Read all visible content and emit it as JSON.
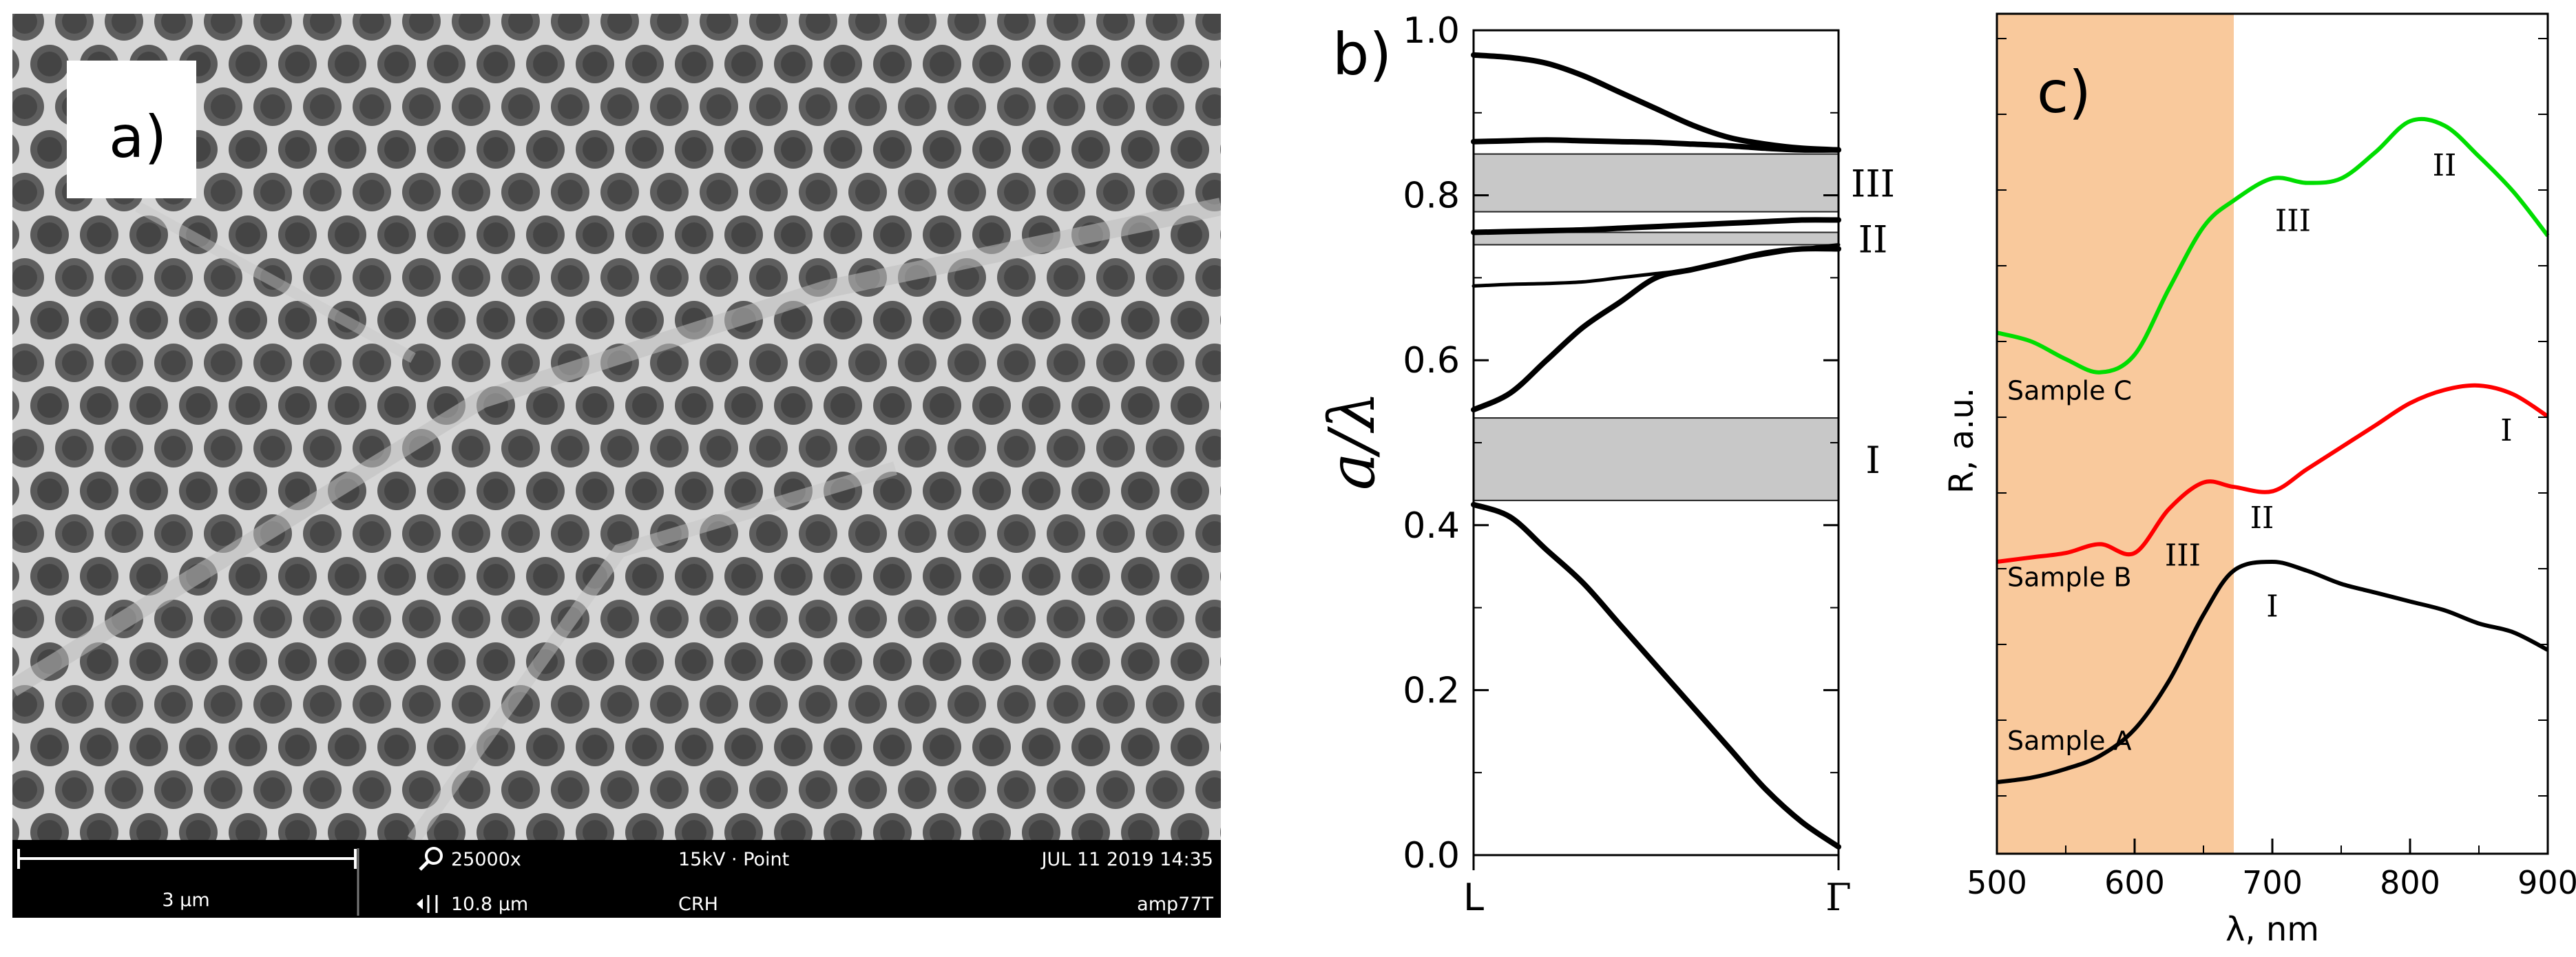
{
  "panels": {
    "a": {
      "label": "a)",
      "microscope_info": {
        "scale_bar": "3 µm",
        "magnification": "25000x",
        "field_of_view": "10.8 µm",
        "voltage_mode": "15kV · Point",
        "detector": "CRH",
        "date": "JUL 11 2019 14:35",
        "sample_id": "amp77T"
      }
    },
    "b": {
      "label": "b)"
    },
    "c": {
      "label": "c)"
    }
  },
  "chart_data": [
    {
      "panel": "b",
      "type": "line",
      "title": "",
      "xlabel": "",
      "ylabel": "a/λ",
      "x_ticks": [
        "L",
        "Γ"
      ],
      "ylim": [
        0,
        1.0
      ],
      "y_ticks": [
        "0.0",
        "0.2",
        "0.4",
        "0.6",
        "0.8",
        "1.0"
      ],
      "x": [
        0,
        0.1,
        0.2,
        0.3,
        0.4,
        0.5,
        0.6,
        0.7,
        0.8,
        0.9,
        1.0
      ],
      "series": [
        {
          "name": "band 1",
          "values": [
            0.425,
            0.41,
            0.37,
            0.33,
            0.28,
            0.23,
            0.18,
            0.13,
            0.08,
            0.04,
            0.01
          ]
        },
        {
          "name": "band 2",
          "values": [
            0.54,
            0.56,
            0.6,
            0.64,
            0.67,
            0.7,
            0.71,
            0.72,
            0.73,
            0.735,
            0.735
          ]
        },
        {
          "name": "band 3",
          "values": [
            0.69,
            0.692,
            0.693,
            0.695,
            0.7,
            0.705,
            0.71,
            0.72,
            0.728,
            0.735,
            0.74
          ]
        },
        {
          "name": "band 4",
          "values": [
            0.755,
            0.756,
            0.757,
            0.758,
            0.76,
            0.762,
            0.764,
            0.766,
            0.768,
            0.77,
            0.77
          ]
        },
        {
          "name": "band 5",
          "values": [
            0.865,
            0.866,
            0.867,
            0.866,
            0.865,
            0.864,
            0.862,
            0.86,
            0.857,
            0.855,
            0.855
          ]
        },
        {
          "name": "band 6",
          "values": [
            0.97,
            0.967,
            0.96,
            0.945,
            0.925,
            0.905,
            0.885,
            0.87,
            0.862,
            0.857,
            0.855
          ]
        }
      ],
      "band_gaps": [
        {
          "label": "I",
          "range": [
            0.43,
            0.53
          ]
        },
        {
          "label": "II",
          "range": [
            0.74,
            0.755
          ]
        },
        {
          "label": "III",
          "range": [
            0.78,
            0.85
          ]
        }
      ]
    },
    {
      "panel": "c",
      "type": "line",
      "title": "",
      "xlabel": "λ, nm",
      "ylabel": "R, a.u.",
      "xlim": [
        500,
        900
      ],
      "x_ticks": [
        "500",
        "600",
        "700",
        "800",
        "900"
      ],
      "shaded_region": {
        "from": 500,
        "to": 672,
        "color": "#f9c99c"
      },
      "x": [
        500,
        525,
        550,
        575,
        600,
        625,
        650,
        672,
        700,
        725,
        750,
        775,
        800,
        825,
        850,
        875,
        900
      ],
      "series": [
        {
          "name": "Sample A",
          "color": "#000000",
          "values": [
            0.1,
            0.11,
            0.13,
            0.16,
            0.22,
            0.33,
            0.48,
            0.58,
            0.6,
            0.58,
            0.55,
            0.53,
            0.51,
            0.49,
            0.46,
            0.44,
            0.4
          ]
        },
        {
          "name": "Sample B",
          "color": "#ff0000",
          "values": [
            0.6,
            0.61,
            0.62,
            0.64,
            0.62,
            0.72,
            0.78,
            0.77,
            0.76,
            0.81,
            0.86,
            0.91,
            0.96,
            0.99,
            1.0,
            0.98,
            0.93
          ]
        },
        {
          "name": "Sample C",
          "color": "#00dd00",
          "values": [
            1.12,
            1.1,
            1.06,
            1.03,
            1.07,
            1.22,
            1.36,
            1.42,
            1.47,
            1.46,
            1.47,
            1.53,
            1.6,
            1.59,
            1.52,
            1.44,
            1.34
          ]
        }
      ],
      "annotations": [
        {
          "text": "Sample C",
          "series": "Sample C"
        },
        {
          "text": "Sample B",
          "series": "Sample B"
        },
        {
          "text": "Sample A",
          "series": "Sample A"
        },
        {
          "text": "I",
          "series": "Sample A",
          "x": 690
        },
        {
          "text": "I",
          "series": "Sample B",
          "x": 860
        },
        {
          "text": "II",
          "series": "Sample B",
          "x": 665
        },
        {
          "text": "III",
          "series": "Sample B",
          "x": 630
        },
        {
          "text": "II",
          "series": "Sample C",
          "x": 815
        },
        {
          "text": "III",
          "series": "Sample C",
          "x": 705
        }
      ]
    }
  ]
}
